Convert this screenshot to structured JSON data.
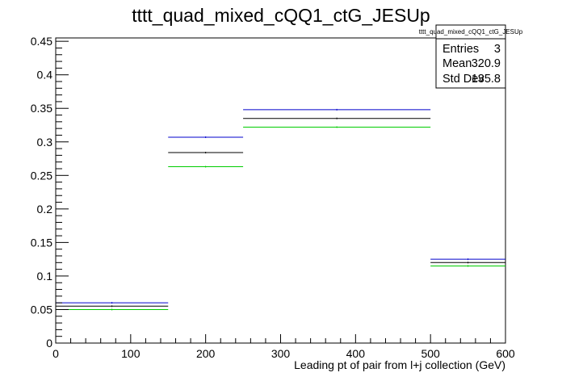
{
  "chart_data": {
    "type": "step-histogram",
    "title": "tttt_quad_mixed_cQQ1_ctG_JESUp",
    "xlabel": "Leading pt of pair from l+j collection (GeV)",
    "ylabel": "",
    "xlim": [
      0,
      600
    ],
    "ylim": [
      0,
      0.455
    ],
    "x_ticks": [
      0,
      100,
      200,
      300,
      400,
      500,
      600
    ],
    "y_ticks": [
      0,
      0.05,
      0.1,
      0.15,
      0.2,
      0.25,
      0.3,
      0.35,
      0.4,
      0.45
    ],
    "x_tick_labels": [
      "0",
      "100",
      "200",
      "300",
      "400",
      "500",
      "600"
    ],
    "y_tick_labels": [
      "0",
      "0.05",
      "0.1",
      "0.15",
      "0.2",
      "0.25",
      "0.3",
      "0.35",
      "0.4",
      "0.45"
    ],
    "bin_edges": [
      0,
      150,
      250,
      500,
      600
    ],
    "series": [
      {
        "color": "#0000cc",
        "values": [
          0.06,
          0.307,
          0.348,
          0.125
        ]
      },
      {
        "color": "#000000",
        "values": [
          0.055,
          0.284,
          0.335,
          0.12
        ]
      },
      {
        "color": "#00cc00",
        "values": [
          0.05,
          0.263,
          0.322,
          0.115
        ]
      }
    ],
    "grid": false,
    "legend": "none"
  },
  "stats_box": {
    "title": "tttt_quad_mixed_cQQ1_ctG_JESUp",
    "rows": [
      {
        "label": "Entries",
        "value": "3"
      },
      {
        "label": "Mean",
        "value": "320.9"
      },
      {
        "label": "Std Dev",
        "value": "135.8"
      }
    ]
  }
}
